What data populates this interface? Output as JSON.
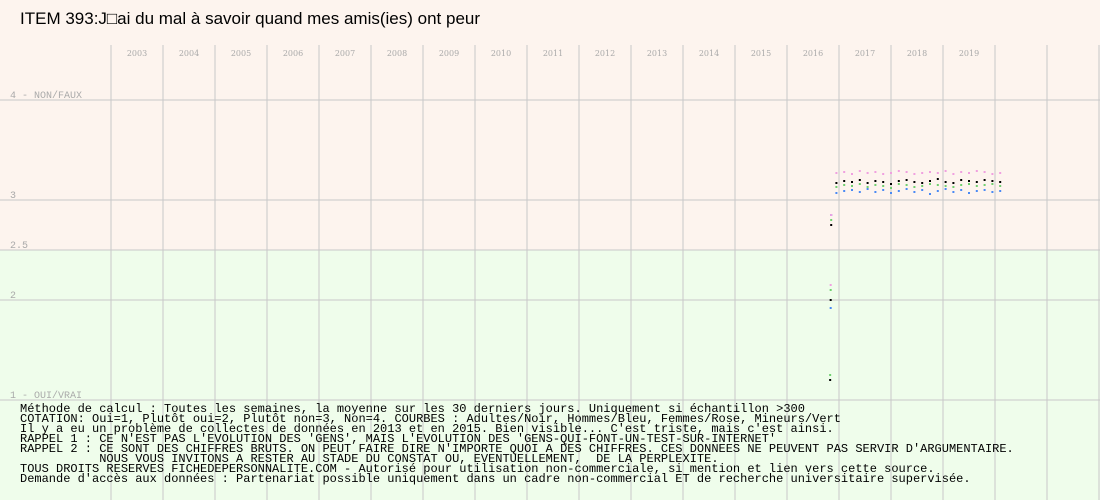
{
  "chart_data": {
    "type": "scatter",
    "title": "ITEM 393:J□ai du mal à savoir quand mes amis(ies) ont peur",
    "x": [
      2016.33,
      2016.34,
      2016.35,
      2016.45,
      2016.6,
      2016.75,
      2016.9,
      2017.05,
      2017.2,
      2017.35,
      2017.5,
      2017.65,
      2017.8,
      2017.95,
      2018.1,
      2018.25,
      2018.4,
      2018.55,
      2018.7,
      2018.85,
      2019.0,
      2019.15,
      2019.3,
      2019.45,
      2019.6
    ],
    "series": [
      {
        "color": "#000000",
        "values": [
          1.2,
          2.0,
          2.75,
          3.17,
          3.19,
          3.18,
          3.2,
          3.17,
          3.19,
          3.18,
          3.16,
          3.19,
          3.2,
          3.18,
          3.17,
          3.19,
          3.21,
          3.18,
          3.17,
          3.2,
          3.19,
          3.18,
          3.2,
          3.19,
          3.18
        ]
      },
      {
        "color": "#4a8af4",
        "values": [
          null,
          1.92,
          2.85,
          3.07,
          3.09,
          3.1,
          3.08,
          3.11,
          3.08,
          3.1,
          3.07,
          3.09,
          3.11,
          3.08,
          3.1,
          3.06,
          3.09,
          3.11,
          3.08,
          3.1,
          3.07,
          3.09,
          3.1,
          3.08,
          3.09
        ]
      },
      {
        "color": "#f0a0e0",
        "values": [
          null,
          2.15,
          2.85,
          3.27,
          3.28,
          3.26,
          3.29,
          3.27,
          3.28,
          3.26,
          3.27,
          3.29,
          3.28,
          3.26,
          3.27,
          3.28,
          3.27,
          3.29,
          3.26,
          3.28,
          3.27,
          3.29,
          3.28,
          3.26,
          3.27
        ]
      },
      {
        "color": "#70d070",
        "values": [
          1.25,
          2.1,
          2.8,
          3.13,
          3.15,
          3.14,
          3.16,
          3.13,
          3.15,
          3.14,
          3.12,
          3.16,
          3.15,
          3.13,
          3.14,
          3.16,
          3.15,
          3.14,
          3.13,
          3.15,
          3.16,
          3.14,
          3.15,
          3.16,
          3.14
        ]
      }
    ],
    "xlim": [
      2002.5,
      2021.5
    ],
    "xticks": [
      2003,
      2004,
      2005,
      2006,
      2007,
      2008,
      2009,
      2010,
      2011,
      2012,
      2013,
      2014,
      2015,
      2016,
      2017,
      2018,
      2019
    ],
    "ylim": [
      1,
      4
    ],
    "yticks": [
      {
        "value": 1,
        "label": "1 - OUI/VRAI"
      },
      2,
      2.5,
      3,
      {
        "value": 4,
        "label": "4 - NON/FAUX"
      }
    ],
    "grid": true,
    "notes": [
      "Méthode de calcul : Toutes les semaines, la moyenne sur les 30 derniers jours. Uniquement si échantillon >300",
      "COTATION: Oui=1, Plutôt oui=2, Plutôt non=3, Non=4. COURBES : Adultes/Noir, Hommes/Bleu, Femmes/Rose, Mineurs/Vert",
      "Il y a eu un problème de collectes de données en 2013 et en 2015. Bien visible... C'est triste, mais c'est ainsi.",
      "RAPPEL 1 : CE N'EST PAS L'EVOLUTION DES 'GENS', MAIS L'EVOLUTION DES 'GENS-QUI-FONT-UN-TEST-SUR-INTERNET'",
      "RAPPEL 2 : CE SONT DES CHIFFRES BRUTS. ON PEUT FAIRE DIRE N'IMPORTE QUOI A DES CHIFFRES. CES DONNEES NE PEUVENT PAS SERVIR D'ARGUMENTAIRE.",
      "           NOUS VOUS INVITONS A RESTER AU STADE DU CONSTAT OU, EVENTUELLEMENT,  DE LA PERPLEXITE.",
      "TOUS DROITS RESERVES FICHEDEPERSONNALITE.COM - Autorisé pour utilisation non-commerciale, si mention et lien vers cette source.",
      "Demande d'accès aux données : Partenariat possible uniquement dans un cadre non-commercial ET de recherche universitaire supervisée."
    ]
  }
}
